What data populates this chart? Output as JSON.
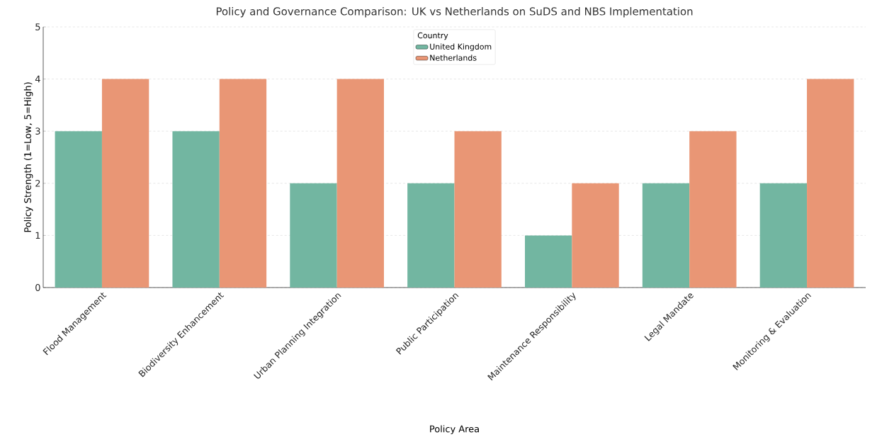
{
  "chart_data": {
    "type": "bar",
    "title": "Policy and Governance Comparison: UK vs Netherlands on SuDS and NBS Implementation",
    "xlabel": "Policy Area",
    "ylabel": "Policy Strength (1=Low, 5=High)",
    "legend_title": "Country",
    "categories": [
      "Flood Management",
      "Biodiversity Enhancement",
      "Urban Planning Integration",
      "Public Participation",
      "Maintenance Responsibility",
      "Legal Mandate",
      "Monitoring & Evaluation"
    ],
    "series": [
      {
        "name": "United Kingdom",
        "color": "#72b6a1",
        "values": [
          3,
          3,
          2,
          2,
          1,
          2,
          2
        ]
      },
      {
        "name": "Netherlands",
        "color": "#e99675",
        "values": [
          4,
          4,
          4,
          3,
          2,
          3,
          4
        ]
      }
    ],
    "ylim": [
      0,
      5
    ],
    "yticks": [
      0,
      1,
      2,
      3,
      4,
      5
    ],
    "grid": "y",
    "legend": "top"
  }
}
